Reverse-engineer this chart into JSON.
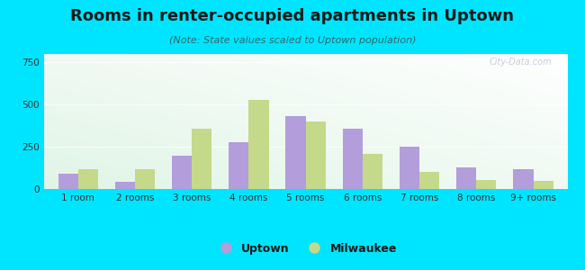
{
  "title": "Rooms in renter-occupied apartments in Uptown",
  "subtitle": "(Note: State values scaled to Uptown population)",
  "categories": [
    "1 room",
    "2 rooms",
    "3 rooms",
    "4 rooms",
    "5 rooms",
    "6 rooms",
    "7 rooms",
    "8 rooms",
    "9+ rooms"
  ],
  "uptown_values": [
    90,
    45,
    200,
    280,
    430,
    355,
    250,
    130,
    120
  ],
  "milwaukee_values": [
    120,
    115,
    360,
    530,
    400,
    210,
    100,
    55,
    50
  ],
  "uptown_color": "#b39ddb",
  "milwaukee_color": "#c5d98a",
  "background_outer": "#00e5ff",
  "ylim": [
    0,
    800
  ],
  "yticks": [
    0,
    250,
    500,
    750
  ],
  "bar_width": 0.35,
  "legend_uptown": "Uptown",
  "legend_milwaukee": "Milwaukee",
  "title_fontsize": 13,
  "subtitle_fontsize": 8,
  "tick_fontsize": 7.5,
  "legend_fontsize": 9,
  "watermark": "City-Data.com"
}
